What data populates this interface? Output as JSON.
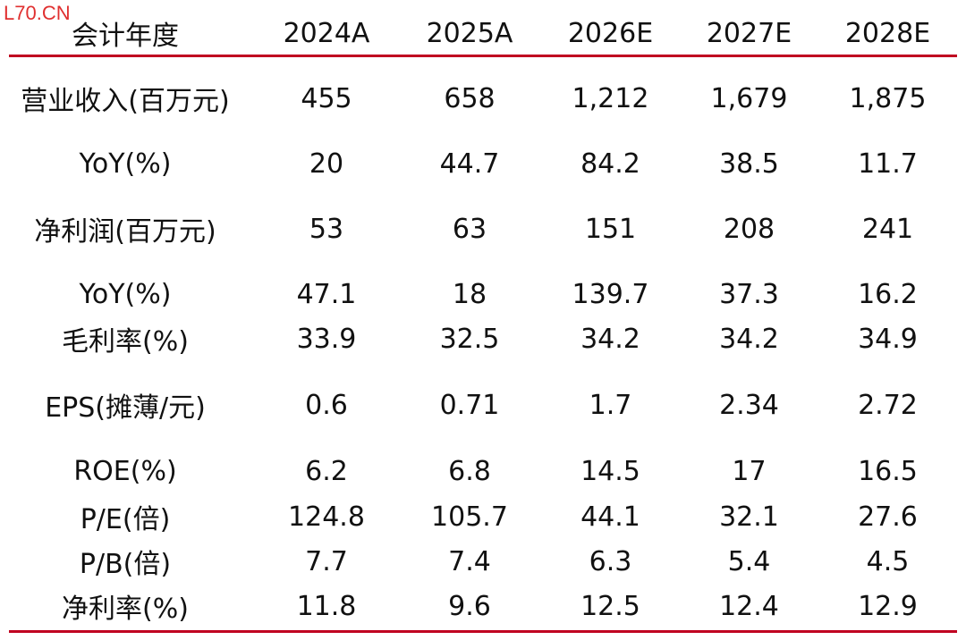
{
  "watermark": "L70.CN",
  "header": [
    "会计年度",
    "2024A",
    "2025A",
    "2026E",
    "2027E",
    "2028E"
  ],
  "rows": [
    [
      "营业收入(百万元)",
      "455",
      "658",
      "1,212",
      "1,679",
      "1,875"
    ],
    [
      "YoY(%)",
      "20",
      "44.7",
      "84.2",
      "38.5",
      "11.7"
    ],
    [
      "净利润(百万元)",
      "53",
      "63",
      "151",
      "208",
      "241"
    ],
    [
      "YoY(%)",
      "47.1",
      "18",
      "139.7",
      "37.3",
      "16.2"
    ],
    [
      "毛利率(%)",
      "33.9",
      "32.5",
      "34.2",
      "34.2",
      "34.9"
    ],
    [
      "EPS(摊薄/元)",
      "0.6",
      "0.71",
      "1.7",
      "2.34",
      "2.72"
    ],
    [
      "ROE(%)",
      "6.2",
      "6.8",
      "14.5",
      "17",
      "16.5"
    ],
    [
      "P/E(倍)",
      "124.8",
      "105.7",
      "44.1",
      "32.1",
      "27.6"
    ],
    [
      "P/B(倍)",
      "7.7",
      "7.4",
      "6.3",
      "5.4",
      "4.5"
    ],
    [
      "净利率(%)",
      "11.8",
      "9.6",
      "12.5",
      "12.4",
      "12.9"
    ]
  ],
  "colors": {
    "rule": "#c00020",
    "watermark": "#e03030",
    "text": "#111111"
  }
}
